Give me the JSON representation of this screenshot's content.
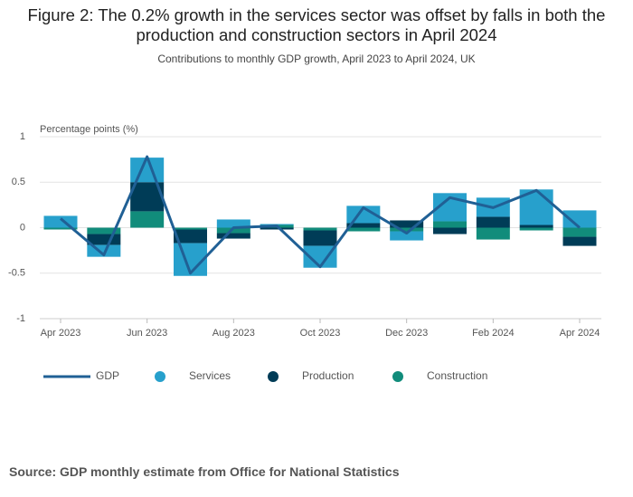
{
  "chart_data": {
    "type": "bar",
    "stacked": true,
    "title": "Figure 2: The 0.2% growth in the services sector was offset by falls in both the production and construction sectors in April 2024",
    "subtitle": "Contributions to monthly GDP growth, April 2023 to April 2024, UK",
    "y_label": "Percentage points (%)",
    "source": "Source: GDP monthly estimate from Office for National Statistics",
    "categories": [
      "Apr 2023",
      null,
      "Jun 2023",
      null,
      "Aug 2023",
      null,
      "Oct 2023",
      null,
      "Dec 2023",
      null,
      "Feb 2024",
      null,
      "Apr 2024"
    ],
    "ylim": [
      -1,
      1
    ],
    "yticks": [
      1,
      0.5,
      0,
      -0.5,
      -1
    ],
    "grid": true,
    "series": [
      {
        "name": "GDP",
        "type": "line",
        "color": "#206095",
        "values": [
          0.1,
          -0.3,
          0.78,
          -0.5,
          0.0,
          0.02,
          -0.43,
          0.22,
          -0.06,
          0.33,
          0.22,
          0.41,
          0.0
        ]
      },
      {
        "name": "Services",
        "type": "bar",
        "color": "#27a0cc",
        "values": [
          0.13,
          -0.13,
          0.27,
          -0.36,
          0.09,
          0.01,
          -0.24,
          0.19,
          -0.1,
          0.31,
          0.21,
          0.39,
          0.19
        ]
      },
      {
        "name": "Production",
        "type": "bar",
        "color": "#003c57",
        "values": [
          0.0,
          -0.12,
          0.32,
          -0.15,
          -0.06,
          -0.02,
          -0.17,
          0.05,
          0.08,
          -0.07,
          0.12,
          0.03,
          -0.1
        ]
      },
      {
        "name": "Construction",
        "type": "bar",
        "color": "#118c7b",
        "values": [
          -0.02,
          -0.07,
          0.18,
          -0.02,
          -0.06,
          0.03,
          -0.03,
          -0.04,
          -0.04,
          0.07,
          -0.13,
          -0.03,
          -0.1
        ]
      }
    ]
  }
}
